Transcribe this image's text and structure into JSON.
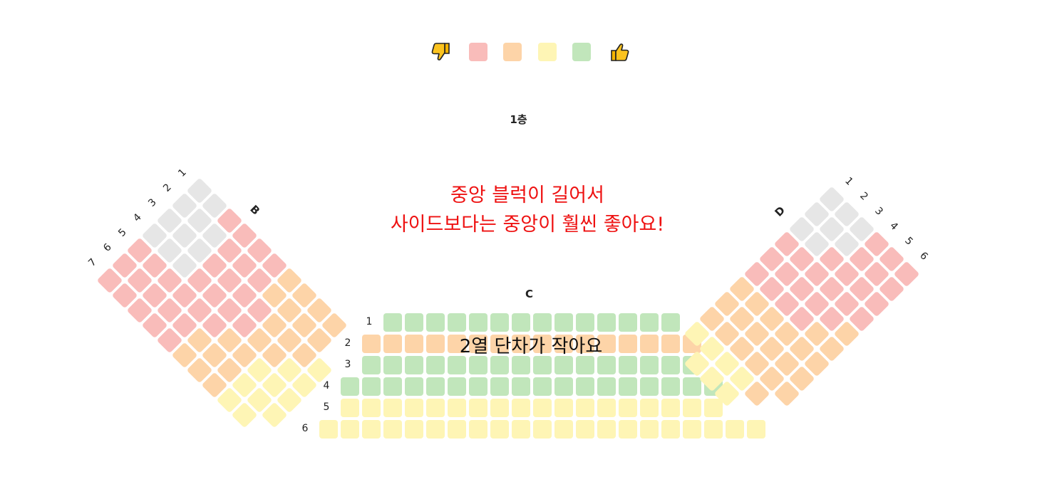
{
  "legend": {
    "bad_icon": "thumbs-down-icon",
    "good_icon": "thumbs-up-icon",
    "colors": [
      "#f9bcba",
      "#fdd4a8",
      "#fef5b5",
      "#c1e6bb"
    ]
  },
  "floor_label": "1층",
  "note": {
    "line1": "중앙 블럭이 길어서",
    "line2": "사이드보다는 중앙이 훨씬 좋아요!"
  },
  "overlay_note": "2열 단차가 작아요",
  "colors": {
    "gray": "#e6e6e6",
    "red": "#f9bcba",
    "orange": "#fdd4a8",
    "yellow": "#fef5b5",
    "green": "#c1e6bb",
    "note_red": "#ee1111"
  },
  "sections": {
    "B": {
      "label": "B",
      "row_labels": [
        "1",
        "2",
        "3",
        "4",
        "5",
        "6",
        "7"
      ],
      "rows": [
        [
          "gray",
          "gray",
          "red",
          "red",
          "red",
          "red",
          "orange",
          "orange",
          "orange",
          "orange"
        ],
        [
          "gray",
          "gray",
          "gray",
          "red",
          "red",
          "red",
          "orange",
          "orange",
          "orange",
          "orange"
        ],
        [
          "gray",
          "gray",
          "gray",
          "red",
          "red",
          "red",
          "red",
          "orange",
          "orange",
          "orange",
          "yellow"
        ],
        [
          "gray",
          "gray",
          "gray",
          "red",
          "red",
          "red",
          "red",
          "orange",
          "orange",
          "yellow",
          "yellow"
        ],
        [
          "red",
          "red",
          "red",
          "red",
          "red",
          "red",
          "orange",
          "orange",
          "yellow",
          "yellow",
          "yellow"
        ],
        [
          "red",
          "red",
          "red",
          "red",
          "red",
          "orange",
          "orange",
          "orange",
          "yellow",
          "yellow",
          "yellow"
        ],
        [
          "red",
          "red",
          "red",
          "red",
          "red",
          "orange",
          "orange",
          "orange",
          "yellow",
          "yellow"
        ]
      ]
    },
    "C": {
      "label": "C",
      "row_labels": [
        "1",
        "2",
        "3",
        "4",
        "5",
        "6"
      ],
      "rows": [
        [
          "green",
          "green",
          "green",
          "green",
          "green",
          "green",
          "green",
          "green",
          "green",
          "green",
          "green",
          "green",
          "green",
          "green"
        ],
        [
          "orange",
          "orange",
          "orange",
          "orange",
          "orange",
          "orange",
          "orange",
          "orange",
          "orange",
          "orange",
          "orange",
          "orange",
          "orange",
          "orange",
          "orange",
          "orange"
        ],
        [
          "green",
          "green",
          "green",
          "green",
          "green",
          "green",
          "green",
          "green",
          "green",
          "green",
          "green",
          "green",
          "green",
          "green",
          "green",
          "green"
        ],
        [
          "green",
          "green",
          "green",
          "green",
          "green",
          "green",
          "green",
          "green",
          "green",
          "green",
          "green",
          "green",
          "green",
          "green",
          "green",
          "green",
          "green",
          "green"
        ],
        [
          "yellow",
          "yellow",
          "yellow",
          "yellow",
          "yellow",
          "yellow",
          "yellow",
          "yellow",
          "yellow",
          "yellow",
          "yellow",
          "yellow",
          "yellow",
          "yellow",
          "yellow",
          "yellow",
          "yellow",
          "yellow"
        ],
        [
          "yellow",
          "yellow",
          "yellow",
          "yellow",
          "yellow",
          "yellow",
          "yellow",
          "yellow",
          "yellow",
          "yellow",
          "yellow",
          "yellow",
          "yellow",
          "yellow",
          "yellow",
          "yellow",
          "yellow",
          "yellow",
          "yellow",
          "yellow",
          "yellow"
        ]
      ]
    },
    "D": {
      "label": "D",
      "row_labels": [
        "1",
        "2",
        "3",
        "4",
        "5",
        "6"
      ],
      "rows": [
        [
          "gray",
          "gray",
          "gray",
          "red",
          "red",
          "red",
          "orange",
          "orange",
          "orange",
          "yellow"
        ],
        [
          "gray",
          "gray",
          "gray",
          "red",
          "red",
          "red",
          "orange",
          "orange",
          "orange",
          "yellow",
          "yellow"
        ],
        [
          "gray",
          "gray",
          "red",
          "red",
          "red",
          "red",
          "orange",
          "orange",
          "orange",
          "yellow",
          "yellow"
        ],
        [
          "red",
          "red",
          "red",
          "red",
          "red",
          "red",
          "orange",
          "orange",
          "orange",
          "yellow",
          "yellow"
        ],
        [
          "red",
          "red",
          "red",
          "red",
          "red",
          "orange",
          "orange",
          "orange",
          "orange",
          "orange"
        ],
        [
          "red",
          "red",
          "red",
          "red",
          "orange",
          "orange",
          "orange",
          "orange",
          "orange"
        ]
      ]
    }
  }
}
